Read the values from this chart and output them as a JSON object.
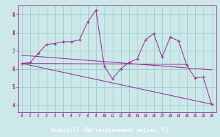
{
  "background_color": "#cce8e8",
  "plot_bg_color": "#cce8e8",
  "line_color": "#993399",
  "grid_color": "#99cccc",
  "xlabel": "Windchill (Refroidissement éolien,°C)",
  "xlabel_color": "#ffffff",
  "xlabel_bg": "#993399",
  "ylabel_ticks": [
    4,
    5,
    6,
    7,
    8,
    9
  ],
  "xlim": [
    -0.5,
    23.5
  ],
  "ylim": [
    3.6,
    9.5
  ],
  "x_ticks": [
    0,
    1,
    2,
    3,
    4,
    5,
    6,
    7,
    8,
    9,
    10,
    11,
    12,
    13,
    14,
    15,
    16,
    17,
    18,
    19,
    20,
    21,
    22,
    23
  ],
  "series1_x": [
    0,
    1,
    2,
    3,
    4,
    5,
    6,
    7,
    8,
    9,
    10,
    11,
    12,
    13,
    14,
    15,
    16,
    17,
    18,
    19,
    20,
    21,
    22,
    23
  ],
  "series1_y": [
    6.3,
    6.35,
    6.85,
    7.35,
    7.4,
    7.5,
    7.5,
    7.6,
    8.6,
    9.25,
    6.15,
    5.45,
    6.0,
    6.35,
    6.55,
    7.6,
    7.95,
    6.65,
    7.75,
    7.55,
    6.2,
    5.5,
    5.55,
    4.05
  ],
  "series2_x": [
    0,
    20
  ],
  "series2_y": [
    6.3,
    6.25
  ],
  "series3_x": [
    0,
    23
  ],
  "series3_y": [
    6.3,
    4.05
  ],
  "series4_x": [
    0,
    23
  ],
  "series4_y": [
    6.75,
    5.95
  ]
}
